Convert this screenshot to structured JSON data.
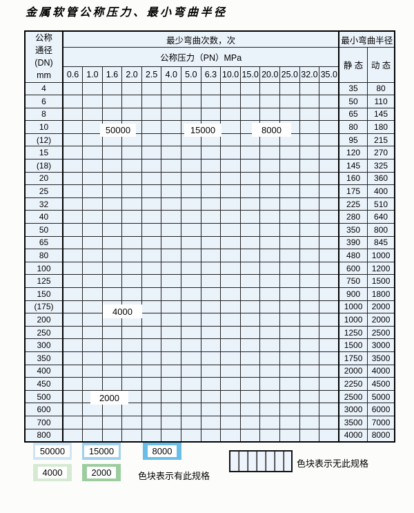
{
  "title": "金属软管公称压力、最小弯曲半径",
  "table": {
    "header": {
      "dn_lines": [
        "公称",
        "通径",
        "(DN)",
        "mm"
      ],
      "bend_cycles": "最少弯曲次数，次",
      "min_radius": "最小弯曲半径",
      "pressure": "公称压力（PN）MPa",
      "static": "静 态",
      "dynamic": "动 态",
      "pressures": [
        "0.6",
        "1.0",
        "1.6",
        "2.0",
        "2.5",
        "4.0",
        "5.0",
        "6.3",
        "10.0",
        "15.0",
        "20.0",
        "25.0",
        "32.0",
        "35.0"
      ]
    },
    "legend_codes": {
      "a": "50000",
      "b": "15000",
      "c": "8000",
      "d": "4000",
      "e": "2000",
      "x": "no-spec"
    },
    "rows": [
      {
        "dn": "4",
        "static": "35",
        "dynamic": "80",
        "pattern": "aaaaabbbbccccc"
      },
      {
        "dn": "6",
        "static": "50",
        "dynamic": "110",
        "pattern": "aaaaabbbbcccxx"
      },
      {
        "dn": "8",
        "static": "65",
        "dynamic": "145",
        "pattern": "aaaaabbbbcccxx"
      },
      {
        "dn": "10",
        "static": "80",
        "dynamic": "180",
        "pattern": "aaaaabbbbcccxx"
      },
      {
        "dn": "(12)",
        "static": "95",
        "dynamic": "215",
        "pattern": "aaaaabbbbcccxx"
      },
      {
        "dn": "15",
        "static": "120",
        "dynamic": "270",
        "pattern": "aaaaabbbbcccxx"
      },
      {
        "dn": "(18)",
        "static": "145",
        "dynamic": "325",
        "pattern": "aaaaabbbcccxxx"
      },
      {
        "dn": "20",
        "static": "160",
        "dynamic": "360",
        "pattern": "aaaaabbbcccxxx"
      },
      {
        "dn": "25",
        "static": "175",
        "dynamic": "400",
        "pattern": "aaaaabbbccxxxx"
      },
      {
        "dn": "32",
        "static": "225",
        "dynamic": "510",
        "pattern": "aaaaabbbcxxxxx"
      },
      {
        "dn": "40",
        "static": "280",
        "dynamic": "640",
        "pattern": "aaaaabbbcxxxxx"
      },
      {
        "dn": "50",
        "static": "350",
        "dynamic": "800",
        "pattern": "aaaaabbbxxxxxx"
      },
      {
        "dn": "65",
        "static": "390",
        "dynamic": "845",
        "pattern": "aaaaabbbxxxxxx"
      },
      {
        "dn": "80",
        "static": "480",
        "dynamic": "1000",
        "pattern": "aaaaabbxxxxxxx"
      },
      {
        "dn": "100",
        "static": "600",
        "dynamic": "1200",
        "pattern": "ddddddxxxxxxxx"
      },
      {
        "dn": "125",
        "static": "750",
        "dynamic": "1500",
        "pattern": "ddddddxxxxxxxx"
      },
      {
        "dn": "150",
        "static": "900",
        "dynamic": "1800",
        "pattern": "ddddddxxxxxxxx"
      },
      {
        "dn": "(175)",
        "static": "1000",
        "dynamic": "2000",
        "pattern": "ddddddxxxxxxxx"
      },
      {
        "dn": "200",
        "static": "1000",
        "dynamic": "2000",
        "pattern": "ddddddxxxxxxxx"
      },
      {
        "dn": "250",
        "static": "1250",
        "dynamic": "2500",
        "pattern": "ddddddxxxxxxxx"
      },
      {
        "dn": "300",
        "static": "1500",
        "dynamic": "3000",
        "pattern": "ddddddxxxxxxxx"
      },
      {
        "dn": "350",
        "static": "1750",
        "dynamic": "3500",
        "pattern": "eeeeexxxxxxxxx"
      },
      {
        "dn": "400",
        "static": "2000",
        "dynamic": "4000",
        "pattern": "eeeeexxxxxxxxx"
      },
      {
        "dn": "450",
        "static": "2250",
        "dynamic": "4500",
        "pattern": "eeeeexxxxxxxxx"
      },
      {
        "dn": "500",
        "static": "2500",
        "dynamic": "5000",
        "pattern": "eeeeexxxxxxxxx"
      },
      {
        "dn": "600",
        "static": "3000",
        "dynamic": "6000",
        "pattern": "eeeexxxxxxxxxx"
      },
      {
        "dn": "700",
        "static": "3500",
        "dynamic": "7000",
        "pattern": "eeexxxxxxxxxxx"
      },
      {
        "dn": "800",
        "static": "4000",
        "dynamic": "8000",
        "pattern": "eeexxxxxxxxxxx"
      }
    ]
  },
  "overlays": [
    {
      "text": "50000"
    },
    {
      "text": "15000"
    },
    {
      "text": "8000"
    },
    {
      "text": "4000"
    },
    {
      "text": "2000"
    }
  ],
  "legend": {
    "chips": [
      {
        "label": "50000",
        "color_key": "a"
      },
      {
        "label": "15000",
        "color_key": "b"
      },
      {
        "label": "8000",
        "color_key": "c"
      },
      {
        "label": "4000",
        "color_key": "d"
      },
      {
        "label": "2000",
        "color_key": "e"
      }
    ],
    "has_spec_text": "色块表示有此规格",
    "no_spec_text": "色块表示无此规格"
  },
  "colors": {
    "blue_50000": "#cde5f6",
    "blue_15000": "#9fd1ee",
    "blue_8000": "#69bee8",
    "green_4000": "#d6ead3",
    "green_2000": "#9ccd9f",
    "hatch_bg": "#eef4fb",
    "label_cell_bg": "#e8f1fa",
    "grid_line": "#222222"
  }
}
